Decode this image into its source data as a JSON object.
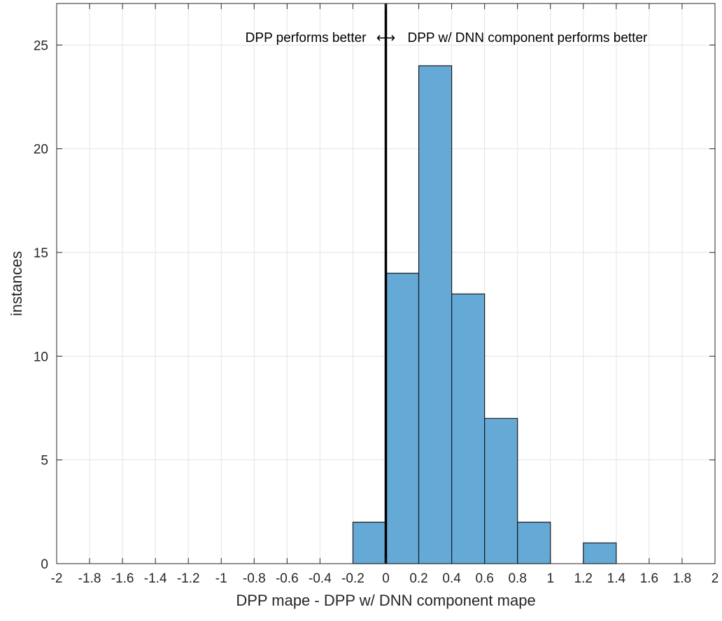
{
  "chart_data": {
    "type": "bar",
    "subtype": "histogram",
    "title": "",
    "xlabel": "DPP mape - DPP w/ DNN component mape",
    "ylabel": "instances",
    "xlim": [
      -2,
      2
    ],
    "ylim": [
      0,
      27
    ],
    "grid": true,
    "bin_width": 0.2,
    "bins": [
      {
        "x0": -0.2,
        "x1": 0.0,
        "count": 2
      },
      {
        "x0": 0.0,
        "x1": 0.2,
        "count": 14
      },
      {
        "x0": 0.2,
        "x1": 0.4,
        "count": 24
      },
      {
        "x0": 0.4,
        "x1": 0.6,
        "count": 13
      },
      {
        "x0": 0.6,
        "x1": 0.8,
        "count": 7
      },
      {
        "x0": 0.8,
        "x1": 1.0,
        "count": 2
      },
      {
        "x0": 1.2,
        "x1": 1.4,
        "count": 1
      }
    ],
    "xticks": [
      -2,
      -1.8,
      -1.6,
      -1.4,
      -1.2,
      -1,
      -0.8,
      -0.6,
      -0.4,
      -0.2,
      0,
      0.2,
      0.4,
      0.6,
      0.8,
      1,
      1.2,
      1.4,
      1.6,
      1.8,
      2
    ],
    "xtick_labels": [
      "-2",
      "-1.8",
      "-1.6",
      "-1.4",
      "-1.2",
      "-1",
      "-0.8",
      "-0.6",
      "-0.4",
      "-0.2",
      "0",
      "0.2",
      "0.4",
      "0.6",
      "0.8",
      "1",
      "1.2",
      "1.4",
      "1.6",
      "1.8",
      "2"
    ],
    "yticks": [
      0,
      5,
      10,
      15,
      20,
      25
    ],
    "ytick_labels": [
      "0",
      "5",
      "10",
      "15",
      "20",
      "25"
    ],
    "vertical_line": {
      "x": 0
    },
    "annotations": {
      "left": "DPP performs better",
      "arrow": "⟷",
      "right": "DPP w/ DNN component performs better"
    },
    "colors": {
      "bar_fill": "#65a9d6",
      "bar_edge": "#1a1a1a",
      "grid": "#e3e3e3",
      "axis": "#262626",
      "vline": "#000000"
    }
  }
}
